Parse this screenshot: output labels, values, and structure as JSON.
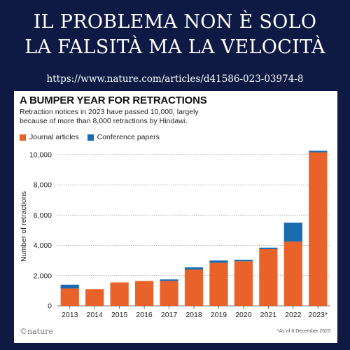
{
  "header": {
    "line1": "IL PROBLEMA NON È SOLO",
    "line2": "LA FALSITÀ MA LA VELOCITÀ",
    "url": "https://www.nature.com/articles/d41586-023-03974-8"
  },
  "footer": {
    "logo": "©nature",
    "note": "*As of 8 December 2023"
  },
  "chart_data": {
    "type": "bar",
    "stacked": true,
    "title": "A BUMPER YEAR FOR RETRACTIONS",
    "subtitle_line1": "Retraction notices in 2023 have passed 10,000, largely",
    "subtitle_line2": "because of more than 8,000 retractions by Hindawi.",
    "ylabel": "Number of retractions",
    "xlabel": "",
    "categories": [
      "2013",
      "2014",
      "2015",
      "2016",
      "2017",
      "2018",
      "2019",
      "2020",
      "2021",
      "2022",
      "2023*"
    ],
    "series": [
      {
        "name": "Journal articles",
        "color": "#e8622a",
        "values": [
          1150,
          1100,
          1550,
          1650,
          1650,
          2400,
          2850,
          2950,
          3750,
          4250,
          10150
        ]
      },
      {
        "name": "Conference papers",
        "color": "#1a6aae",
        "values": [
          250,
          0,
          0,
          0,
          100,
          150,
          150,
          100,
          100,
          1250,
          100
        ]
      }
    ],
    "ylim": [
      0,
      10500
    ],
    "yticks": [
      "0",
      "2,000",
      "4,000",
      "6,000",
      "8,000",
      "10,000"
    ],
    "ytick_values": [
      0,
      2000,
      4000,
      6000,
      8000,
      10000
    ],
    "grid": true,
    "legend_position": "top-left"
  }
}
